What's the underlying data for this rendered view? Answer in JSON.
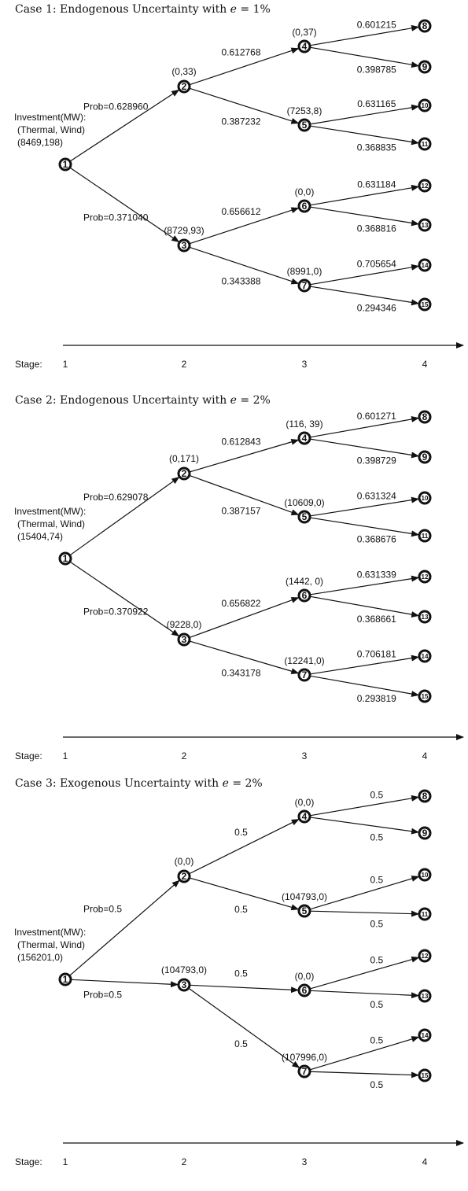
{
  "cases": [
    {
      "title": {
        "prefix": "Case 1:   Endogenous Uncertainty with ",
        "var": "e",
        "suffix": "  = 1%"
      },
      "investment": {
        "header": "Investment(MW):",
        "sub": "(Thermal, Wind)",
        "value": "(8469,198)"
      },
      "probs": {
        "up": "Prob=0.628960",
        "down": "Prob=0.371040"
      },
      "stage2": {
        "n2": "(0,33)",
        "n3": "(8729,93)"
      },
      "stage3": {
        "n4": "(0,37)",
        "n5": "(7253,8)",
        "n6": "(0,0)",
        "n7": "(8991,0)"
      },
      "edge23": {
        "e24": "0.612768",
        "e25": "0.387232",
        "e36": "0.656612",
        "e37": "0.343388"
      },
      "edge34": {
        "e48": "0.601215",
        "e49": "0.398785",
        "e510": "0.631165",
        "e511": "0.368835",
        "e612": "0.631184",
        "e613": "0.368816",
        "e714": "0.705654",
        "e715": "0.294346"
      },
      "stage_axis": {
        "label": "Stage:",
        "s1": "1",
        "s2": "2",
        "s3": "3",
        "s4": "4"
      }
    },
    {
      "title": {
        "prefix": "Case 2:   Endogenous Uncertainty with ",
        "var": "e",
        "suffix": "  = 2%"
      },
      "investment": {
        "header": "Investment(MW):",
        "sub": "(Thermal, Wind)",
        "value": "(15404,74)"
      },
      "probs": {
        "up": "Prob=0.629078",
        "down": "Prob=0.370922"
      },
      "stage2": {
        "n2": "(0,171)",
        "n3": "(9228,0)"
      },
      "stage3": {
        "n4": "(116, 39)",
        "n5": "(10609,0)",
        "n6": "(1442, 0)",
        "n7": "(12241,0)"
      },
      "edge23": {
        "e24": "0.612843",
        "e25": "0.387157",
        "e36": "0.656822",
        "e37": "0.343178"
      },
      "edge34": {
        "e48": "0.601271",
        "e49": "0.398729",
        "e510": "0.631324",
        "e511": "0.368676",
        "e612": "0.631339",
        "e613": "0.368661",
        "e714": "0.706181",
        "e715": "0.293819"
      },
      "stage_axis": {
        "label": "Stage:",
        "s1": "1",
        "s2": "2",
        "s3": "3",
        "s4": "4"
      }
    },
    {
      "title": {
        "prefix": "Case 3:   Exogenous Uncertainty with ",
        "var": "e",
        "suffix": "  = 2%"
      },
      "investment": {
        "header": "Investment(MW):",
        "sub": "(Thermal, Wind)",
        "value": "(156201,0)"
      },
      "probs": {
        "up": "Prob=0.5",
        "down": "Prob=0.5"
      },
      "stage2": {
        "n2": "(0,0)",
        "n3": "(104793,0)"
      },
      "stage3": {
        "n4": "(0,0)",
        "n5": "(104793,0)",
        "n6": "(0,0)",
        "n7": "(107996,0)"
      },
      "edge23": {
        "e24": "0.5",
        "e25": "0.5",
        "e36": "0.5",
        "e37": "0.5"
      },
      "edge34": {
        "e48": "0.5",
        "e49": "0.5",
        "e510": "0.5",
        "e511": "0.5",
        "e612": "0.5",
        "e613": "0.5",
        "e714": "0.5",
        "e715": "0.5"
      },
      "stage_axis": {
        "label": "Stage:",
        "s1": "1",
        "s2": "2",
        "s3": "3",
        "s4": "4"
      }
    }
  ],
  "node_labels": [
    "1",
    "2",
    "3",
    "4",
    "5",
    "6",
    "7",
    "8",
    "9",
    "10",
    "11",
    "12",
    "13",
    "14",
    "15"
  ]
}
